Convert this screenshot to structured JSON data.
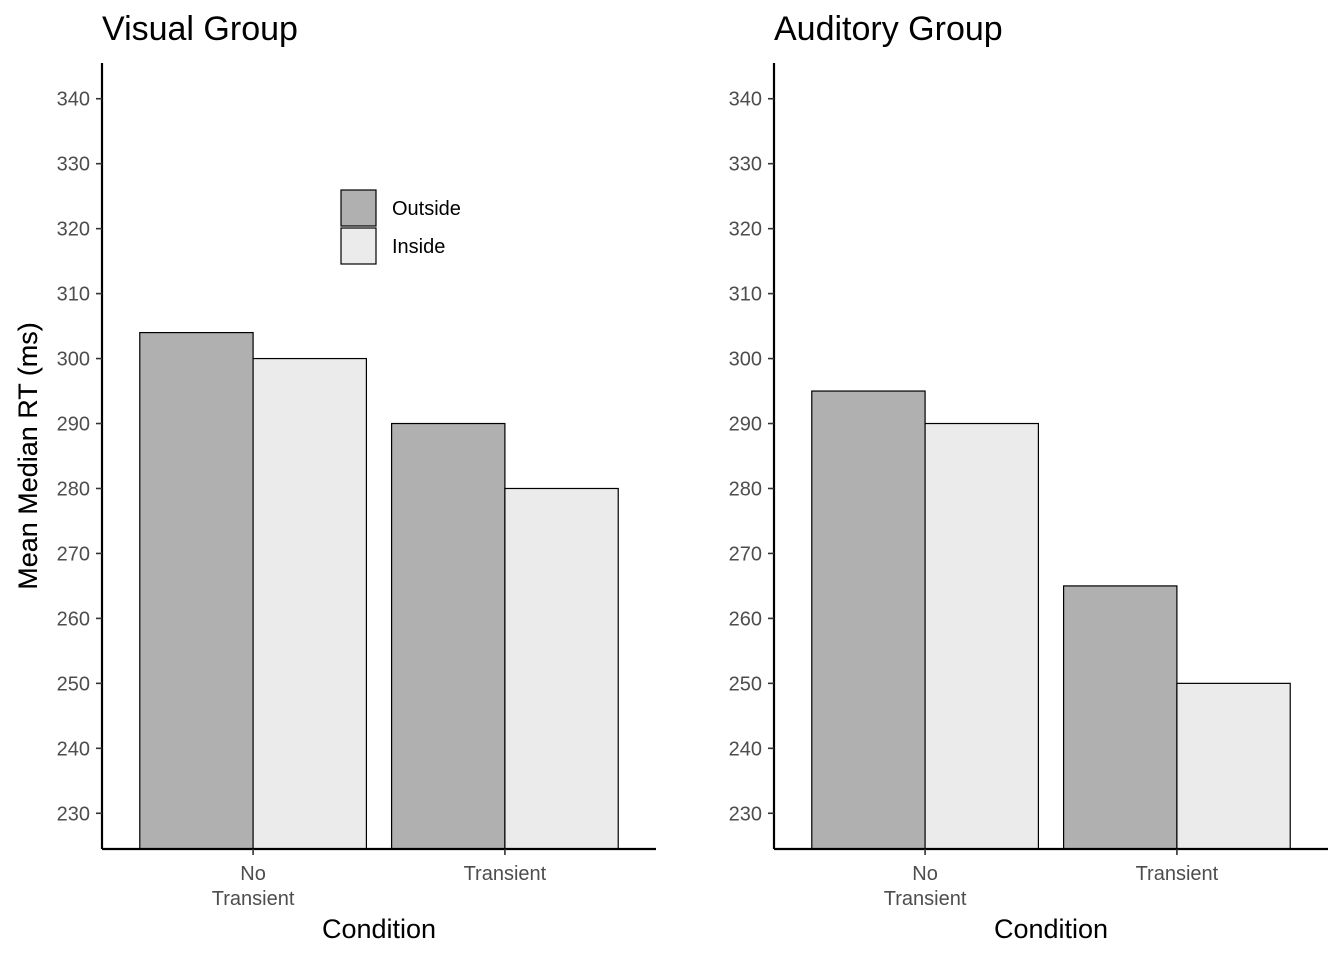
{
  "chart_data": [
    {
      "type": "bar",
      "title": "Visual Group",
      "xlabel": "Condition",
      "ylabel": "Mean Median RT (ms)",
      "categories": [
        [
          "No",
          "Transient"
        ],
        [
          "Transient"
        ]
      ],
      "ylim": [
        224.5,
        345.5
      ],
      "yticks": [
        230,
        240,
        250,
        260,
        270,
        280,
        290,
        300,
        310,
        320,
        330,
        340
      ],
      "series": [
        {
          "name": "Outside",
          "color": "#b0b0b0",
          "values": [
            304,
            290
          ]
        },
        {
          "name": "Inside",
          "color": "#ebebeb",
          "values": [
            300,
            280
          ]
        }
      ],
      "legend": "inside-top-right",
      "grid": false
    },
    {
      "type": "bar",
      "title": "Auditory Group",
      "xlabel": "Condition",
      "ylabel": "Mean Median RT (ms)",
      "categories": [
        [
          "No",
          "Transient"
        ],
        [
          "Transient"
        ]
      ],
      "ylim": [
        224.5,
        345.5
      ],
      "yticks": [
        230,
        240,
        250,
        260,
        270,
        280,
        290,
        300,
        310,
        320,
        330,
        340
      ],
      "series": [
        {
          "name": "Outside",
          "color": "#b0b0b0",
          "values": [
            295,
            265
          ]
        },
        {
          "name": "Inside",
          "color": "#ebebeb",
          "values": [
            290,
            250
          ]
        }
      ],
      "grid": false
    }
  ]
}
